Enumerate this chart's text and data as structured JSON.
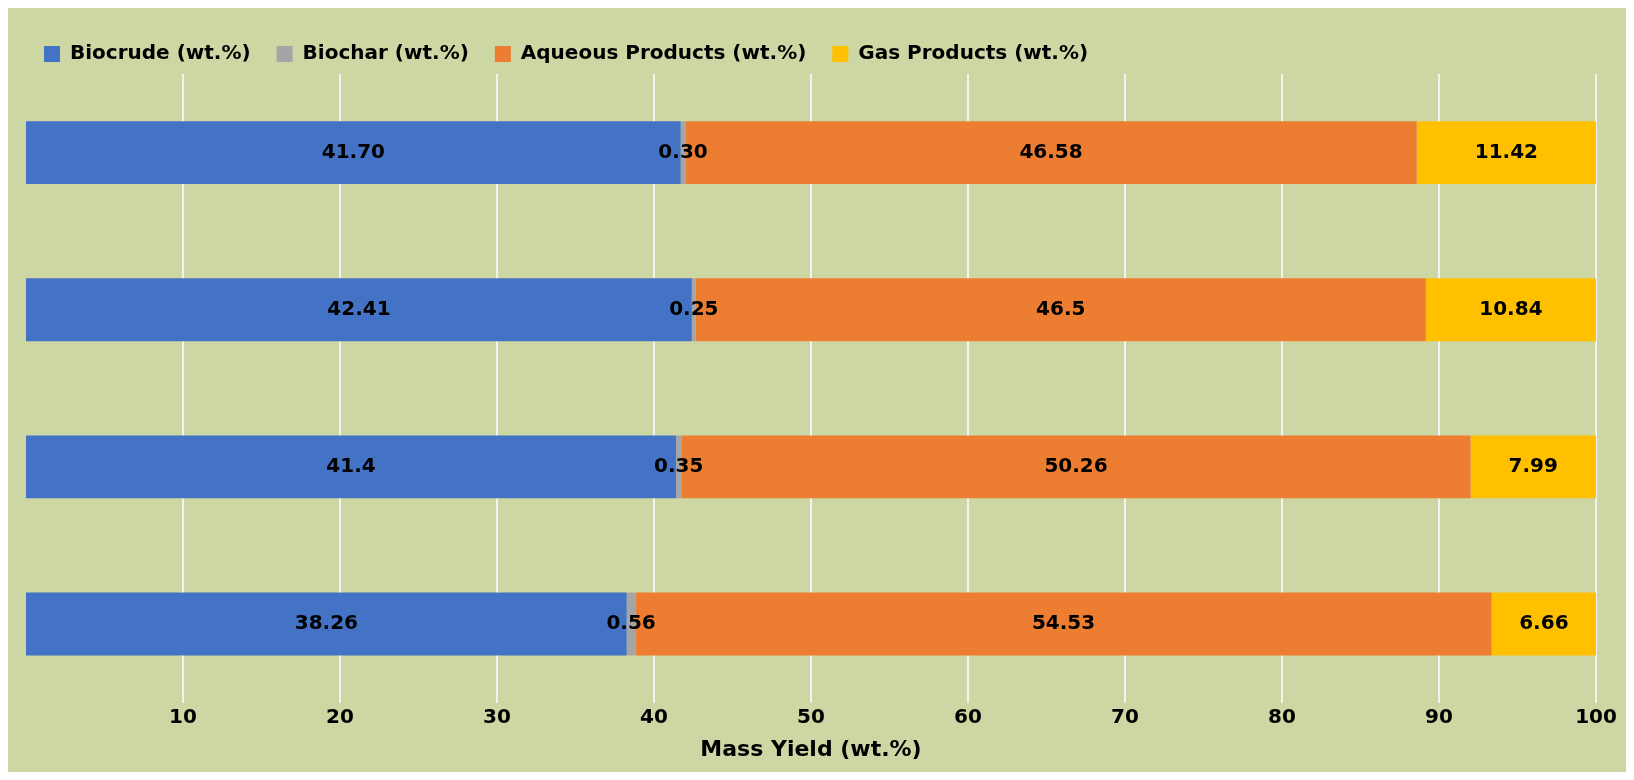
{
  "chart_data": {
    "type": "bar",
    "orientation": "horizontal",
    "stacked": true,
    "xlabel": "Mass Yield (wt.%)",
    "categories": [
      null,
      null,
      null,
      null
    ],
    "series": [
      {
        "name": "Biocrude (wt.%)",
        "color": "#4472c4",
        "values": [
          41.7,
          42.41,
          41.4,
          38.26
        ],
        "value_labels": [
          "41.70",
          "42.41",
          "41.4",
          "38.26"
        ]
      },
      {
        "name": "Biochar (wt.%)",
        "color": "#a5a5a5",
        "values": [
          0.3,
          0.25,
          0.35,
          0.56
        ],
        "value_labels": [
          "0.30",
          "0.25",
          "0.35",
          "0.56"
        ]
      },
      {
        "name": "Aqueous Products (wt.%)",
        "color": "#ed7d31",
        "values": [
          46.58,
          46.5,
          50.26,
          54.53
        ],
        "value_labels": [
          "46.58",
          "46.5",
          "50.26",
          "54.53"
        ]
      },
      {
        "name": "Gas Products (wt.%)",
        "color": "#ffc000",
        "values": [
          11.42,
          10.84,
          7.99,
          6.66
        ],
        "value_labels": [
          "11.42",
          "10.84",
          "7.99",
          "6.66"
        ]
      }
    ],
    "xlim": [
      0,
      100
    ],
    "xticks": [
      10,
      20,
      30,
      40,
      50,
      60,
      70,
      80,
      90,
      100
    ],
    "grid": "x",
    "legend": "top left",
    "tick_labels": "x"
  }
}
